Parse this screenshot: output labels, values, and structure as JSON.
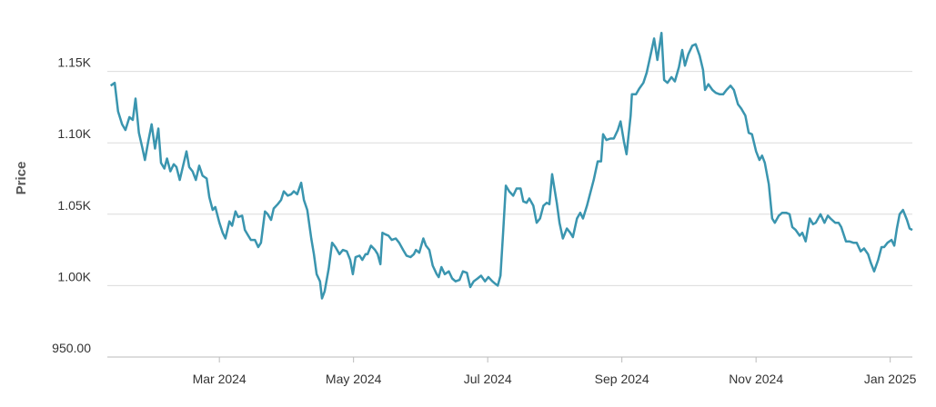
{
  "chart_data": {
    "type": "line",
    "y_label": "Price",
    "color": "#3a95af",
    "grid": true,
    "xlim": [
      0.33,
      12.33
    ],
    "xticks": [
      {
        "value": 2,
        "label": "Mar 2024"
      },
      {
        "value": 4,
        "label": "May 2024"
      },
      {
        "value": 6,
        "label": "Jul 2024"
      },
      {
        "value": 8,
        "label": "Sep 2024"
      },
      {
        "value": 10,
        "label": "Nov 2024"
      },
      {
        "value": 12,
        "label": "Jan 2025"
      }
    ],
    "ylim": [
      950,
      1200
    ],
    "yticks": [
      {
        "value": 950,
        "label": "950.00"
      },
      {
        "value": 1000,
        "label": "1.00K"
      },
      {
        "value": 1050,
        "label": "1.05K"
      },
      {
        "value": 1100,
        "label": "1.10K"
      },
      {
        "value": 1150,
        "label": "1.15K"
      }
    ],
    "x": [
      0.38,
      0.44,
      0.49,
      0.55,
      0.6,
      0.66,
      0.71,
      0.75,
      0.8,
      0.85,
      0.89,
      0.94,
      0.99,
      1.04,
      1.09,
      1.13,
      1.18,
      1.22,
      1.27,
      1.32,
      1.36,
      1.41,
      1.46,
      1.51,
      1.55,
      1.6,
      1.65,
      1.7,
      1.75,
      1.81,
      1.85,
      1.9,
      1.94,
      2.0,
      2.05,
      2.09,
      2.15,
      2.19,
      2.24,
      2.28,
      2.34,
      2.38,
      2.43,
      2.47,
      2.53,
      2.58,
      2.62,
      2.68,
      2.72,
      2.77,
      2.81,
      2.87,
      2.92,
      2.96,
      3.02,
      3.07,
      3.11,
      3.16,
      3.22,
      3.26,
      3.31,
      3.37,
      3.41,
      3.45,
      3.5,
      3.53,
      3.57,
      3.63,
      3.68,
      3.73,
      3.79,
      3.84,
      3.9,
      3.95,
      3.99,
      4.03,
      4.09,
      4.13,
      4.18,
      4.21,
      4.26,
      4.32,
      4.36,
      4.4,
      4.43,
      4.47,
      4.52,
      4.57,
      4.63,
      4.68,
      4.74,
      4.79,
      4.85,
      4.9,
      4.93,
      4.98,
      5.04,
      5.08,
      5.13,
      5.18,
      5.24,
      5.27,
      5.31,
      5.36,
      5.42,
      5.47,
      5.52,
      5.58,
      5.63,
      5.69,
      5.74,
      5.79,
      5.85,
      5.9,
      5.96,
      6.01,
      6.07,
      6.12,
      6.15,
      6.19,
      6.23,
      6.27,
      6.32,
      6.38,
      6.43,
      6.49,
      6.53,
      6.58,
      6.62,
      6.68,
      6.73,
      6.78,
      6.83,
      6.88,
      6.92,
      6.96,
      7.03,
      7.07,
      7.12,
      7.18,
      7.23,
      7.27,
      7.33,
      7.38,
      7.42,
      7.48,
      7.53,
      7.58,
      7.64,
      7.69,
      7.72,
      7.77,
      7.83,
      7.88,
      7.94,
      7.98,
      8.03,
      8.07,
      8.13,
      8.15,
      8.21,
      8.26,
      8.32,
      8.37,
      8.43,
      8.48,
      8.53,
      8.59,
      8.63,
      8.68,
      8.74,
      8.79,
      8.85,
      8.9,
      8.94,
      8.99,
      9.05,
      9.1,
      9.16,
      9.21,
      9.24,
      9.29,
      9.35,
      9.4,
      9.46,
      9.51,
      9.56,
      9.62,
      9.67,
      9.73,
      9.78,
      9.84,
      9.89,
      9.94,
      10.0,
      10.05,
      10.09,
      10.13,
      10.19,
      10.24,
      10.28,
      10.34,
      10.39,
      10.45,
      10.5,
      10.54,
      10.59,
      10.65,
      10.69,
      10.74,
      10.8,
      10.85,
      10.89,
      10.96,
      11.02,
      11.07,
      11.11,
      11.18,
      11.23,
      11.27,
      11.34,
      11.39,
      11.45,
      11.5,
      11.56,
      11.61,
      11.67,
      11.71,
      11.76,
      11.82,
      11.87,
      11.91,
      11.96,
      12.02,
      12.06,
      12.1,
      12.14,
      12.19,
      12.25,
      12.29,
      12.33
    ],
    "series": [
      {
        "name": "Price",
        "values": [
          1140,
          1142,
          1122,
          1113,
          1109,
          1118,
          1116,
          1131,
          1107,
          1097,
          1088,
          1101,
          1113,
          1096,
          1110,
          1086,
          1082,
          1089,
          1080,
          1085,
          1083,
          1074,
          1084,
          1094,
          1083,
          1080,
          1074,
          1084,
          1077,
          1075,
          1062,
          1053,
          1055,
          1044,
          1037,
          1033,
          1045,
          1042,
          1052,
          1048,
          1049,
          1039,
          1035,
          1032,
          1032,
          1027,
          1030,
          1052,
          1050,
          1046,
          1054,
          1057,
          1060,
          1066,
          1063,
          1064,
          1066,
          1064,
          1072,
          1060,
          1053,
          1033,
          1022,
          1008,
          1003,
          991,
          996,
          1012,
          1030,
          1027,
          1022,
          1025,
          1024,
          1018,
          1008,
          1020,
          1021,
          1018,
          1022,
          1022,
          1028,
          1025,
          1022,
          1015,
          1037,
          1036,
          1035,
          1032,
          1033,
          1030,
          1025,
          1021,
          1020,
          1022,
          1025,
          1023,
          1033,
          1028,
          1025,
          1014,
          1008,
          1006,
          1013,
          1008,
          1010,
          1005,
          1003,
          1004,
          1010,
          1009,
          999,
          1003,
          1005,
          1007,
          1003,
          1006,
          1003,
          1001,
          1000,
          1007,
          1037,
          1070,
          1066,
          1063,
          1068,
          1068,
          1059,
          1058,
          1061,
          1056,
          1044,
          1047,
          1056,
          1058,
          1057,
          1078,
          1058,
          1044,
          1033,
          1040,
          1037,
          1034,
          1047,
          1051,
          1047,
          1056,
          1065,
          1074,
          1087,
          1087,
          1106,
          1102,
          1103,
          1103,
          1109,
          1115,
          1101,
          1092,
          1119,
          1134,
          1134,
          1138,
          1142,
          1149,
          1162,
          1173,
          1158,
          1177,
          1144,
          1142,
          1146,
          1143,
          1153,
          1165,
          1154,
          1162,
          1168,
          1169,
          1161,
          1151,
          1137,
          1141,
          1137,
          1135,
          1134,
          1134,
          1137,
          1140,
          1137,
          1127,
          1124,
          1119,
          1107,
          1106,
          1094,
          1088,
          1091,
          1086,
          1071,
          1047,
          1044,
          1049,
          1051,
          1051,
          1050,
          1041,
          1039,
          1035,
          1037,
          1031,
          1047,
          1043,
          1044,
          1050,
          1044,
          1049,
          1047,
          1044,
          1044,
          1041,
          1031,
          1031,
          1030,
          1030,
          1024,
          1026,
          1022,
          1016,
          1010,
          1018,
          1027,
          1027,
          1030,
          1032,
          1028,
          1040,
          1050,
          1053,
          1046,
          1040,
          1039
        ]
      }
    ]
  }
}
